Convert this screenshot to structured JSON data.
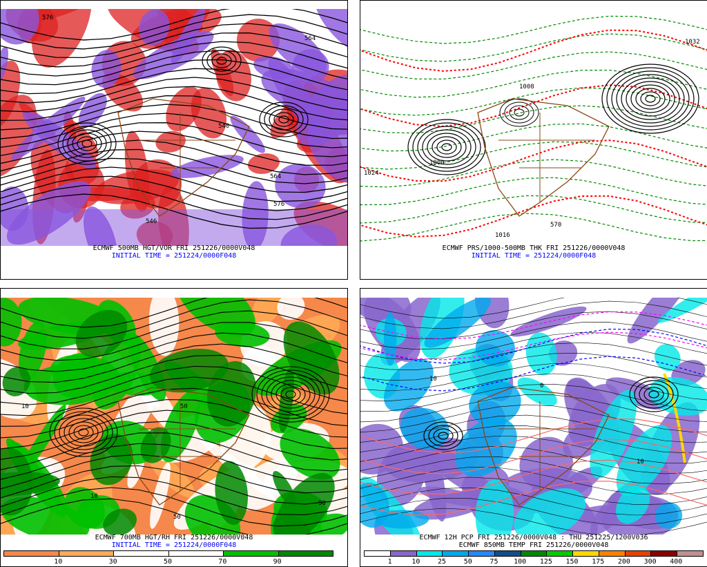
{
  "panels": [
    {
      "caption": "ECMWF 500MB HGT/VOR FRI 251226/0000V048",
      "init": "INITIAL TIME = 251224/0000F048",
      "contour_labels": [
        "576",
        "564",
        "540",
        "564",
        "576",
        "546"
      ]
    },
    {
      "caption": "ECMWF PRS/1000-500MB THK FRI 251226/0000V048",
      "init": "INITIAL TIME = 251224/0000F048",
      "contour_labels": [
        "1032",
        "1016",
        "1008",
        "1000",
        "1024",
        "570"
      ]
    },
    {
      "caption": "ECMWF 700MB HGT/RH FRI 251226/0000V048",
      "init": "INITIAL TIME = 251224/0000F048",
      "contour_labels": [
        "10",
        "50",
        "90",
        "10",
        "50"
      ],
      "colorbar": {
        "labels": [
          "10",
          "30",
          "50",
          "70",
          "90"
        ],
        "colors": [
          "#f5884a",
          "#ffaa55",
          "#ffffff",
          "#ffffff",
          "#00c000",
          "#008800"
        ]
      }
    },
    {
      "caption": "ECMWF 12H PCP FRI 251226/0000V048 : THU 251225/1200V036",
      "caption2": "ECMWF 850MB TEMP FRI 251226/0000V048",
      "contour_labels": [
        "10",
        "0",
        "10"
      ],
      "colorbar": {
        "labels": [
          "1",
          "10",
          "25",
          "50",
          "75",
          "100",
          "125",
          "150",
          "175",
          "200",
          "300",
          "400"
        ],
        "colors": [
          "#ffffff",
          "#8866cc",
          "#00e8e8",
          "#00aaee",
          "#2288ff",
          "#104e8b",
          "#008800",
          "#00cc00",
          "#ffd700",
          "#ff8000",
          "#e84000",
          "#8b0000",
          "#c09090"
        ]
      }
    }
  ],
  "colors": {
    "land": "#8b4513",
    "vorticity": "#dd2222",
    "neg_vorticity": "#8855dd",
    "thickness": "#ff0000",
    "pressure_dashed": "#008800"
  }
}
